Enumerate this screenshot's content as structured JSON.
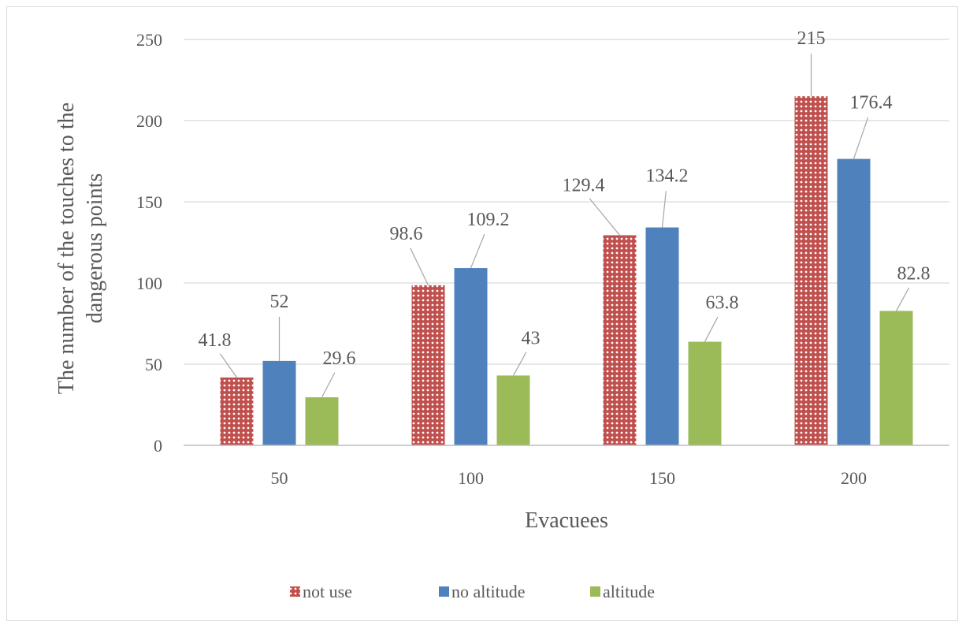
{
  "chart_data": {
    "type": "bar",
    "categories": [
      "50",
      "100",
      "150",
      "200"
    ],
    "series": [
      {
        "name": "not use",
        "values": [
          41.8,
          98.6,
          129.4,
          215
        ],
        "labels": [
          "41.8",
          "98.6",
          "129.4",
          "215"
        ],
        "color": "#c0504d",
        "pattern": "dotted"
      },
      {
        "name": "no altitude",
        "values": [
          52,
          109.2,
          134.2,
          176.4
        ],
        "labels": [
          "52",
          "109.2",
          "134.2",
          "176.4"
        ],
        "color": "#4f81bd"
      },
      {
        "name": "altitude",
        "values": [
          29.6,
          43,
          63.8,
          82.8
        ],
        "labels": [
          "29.6",
          "43",
          "63.8",
          "82.8"
        ],
        "color": "#9bbb59"
      }
    ],
    "xlabel": "Evacuees",
    "ylabel": [
      "The number of the touches to the",
      "dangerous points"
    ],
    "ylim": [
      0,
      250
    ],
    "yticks": [
      "0",
      "50",
      "100",
      "150",
      "200",
      "250"
    ],
    "grid": true,
    "legend_position": "bottom"
  }
}
